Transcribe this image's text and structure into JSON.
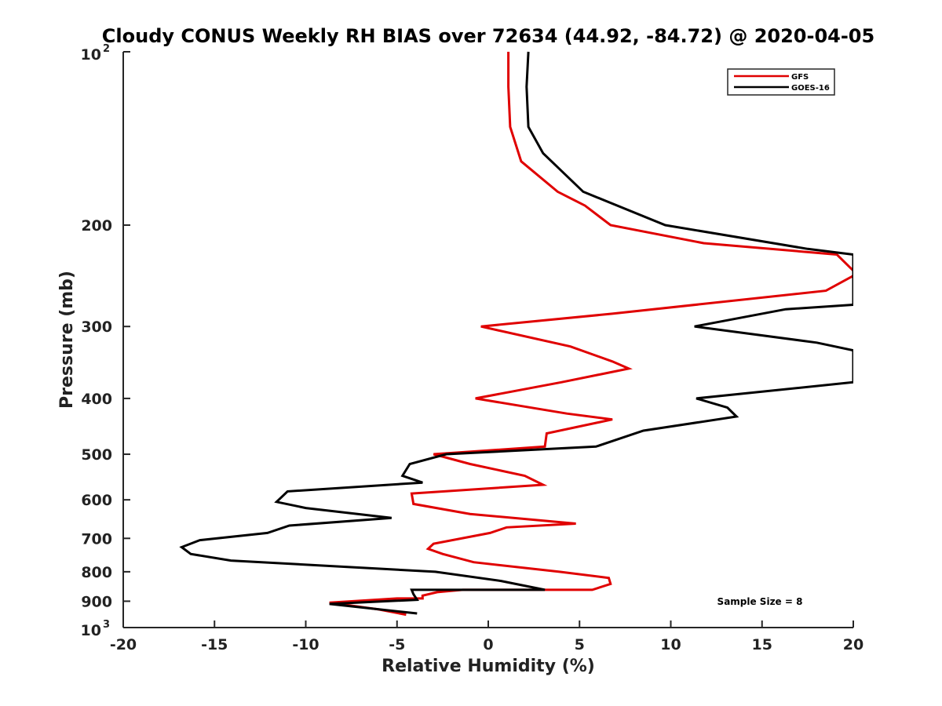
{
  "chart_data": {
    "type": "line",
    "title": "Cloudy CONUS Weekly RH BIAS over 72634 (44.92, -84.72) @ 2020-04-05",
    "xlabel": "Relative Humidity (%)",
    "ylabel": "Pressure (mb)",
    "xlim": [
      -20,
      20
    ],
    "ylim": [
      100,
      1000
    ],
    "y_scale": "log",
    "y_reversed": true,
    "x_ticks": [
      -20,
      -15,
      -10,
      -5,
      0,
      5,
      10,
      15,
      20
    ],
    "x_tick_labels": [
      "-20",
      "-15",
      "-10",
      "-5",
      "0",
      "5",
      "10",
      "15",
      "20"
    ],
    "y_ticks": [
      200,
      300,
      400,
      500,
      600,
      700,
      800,
      900
    ],
    "y_tick_labels": [
      "200",
      "300",
      "400",
      "500",
      "600",
      "700",
      "800",
      "900"
    ],
    "y_end_labels": {
      "top_base": "10",
      "top_exp": "2",
      "bottom_base": "10",
      "bottom_exp": "3"
    },
    "grid": false,
    "legend_position": "top-right",
    "annotation": "Sample Size = 8",
    "series": [
      {
        "name": "GFS",
        "color": "#e00000",
        "x": [
          1.1,
          1.1,
          1.2,
          1.8,
          3.8,
          5.3,
          6.7,
          11.8,
          19.1,
          20.0,
          20.0,
          18.5,
          6.8,
          -0.4,
          4.5,
          6.8,
          7.7,
          4.0,
          -0.7,
          4.3,
          6.8,
          3.2,
          3.1,
          -3.0,
          -1.0,
          2.0,
          3.0,
          -4.2,
          -4.1,
          -1.0,
          4.8,
          1.0,
          0.1,
          -3.0,
          -3.3,
          -2.5,
          -0.8,
          3.9,
          6.6,
          6.7,
          5.7,
          -1.4,
          -2.8,
          -3.6,
          -3.6,
          -5.0,
          -8.7,
          -6.0,
          -4.5
        ],
        "y": [
          100,
          115,
          135,
          155,
          175,
          185,
          200,
          215,
          225,
          240,
          245,
          260,
          285,
          300,
          325,
          345,
          355,
          375,
          400,
          425,
          435,
          460,
          485,
          500,
          520,
          545,
          565,
          585,
          610,
          635,
          660,
          670,
          685,
          715,
          730,
          745,
          770,
          800,
          820,
          840,
          860,
          860,
          868,
          880,
          890,
          890,
          905,
          930,
          950
        ]
      },
      {
        "name": "GOES-16",
        "color": "#000000",
        "x": [
          2.2,
          2.1,
          2.2,
          3.0,
          5.2,
          9.7,
          17.5,
          20.0,
          20.0,
          16.3,
          11.3,
          18.0,
          20.0,
          20.0,
          11.4,
          13.1,
          13.6,
          8.5,
          5.9,
          -2.3,
          -4.3,
          -4.7,
          -3.6,
          -11.0,
          -11.6,
          -10.0,
          -5.3,
          -10.9,
          -12.1,
          -15.8,
          -16.8,
          -16.3,
          -14.1,
          -2.9,
          0.7,
          3.1,
          -4.2,
          -4.1,
          -3.9,
          -8.7,
          -3.9
        ],
        "y": [
          100,
          115,
          135,
          150,
          175,
          200,
          220,
          225,
          275,
          280,
          300,
          320,
          330,
          375,
          400,
          415,
          430,
          455,
          485,
          500,
          520,
          545,
          560,
          580,
          605,
          620,
          645,
          665,
          685,
          705,
          725,
          745,
          765,
          800,
          830,
          860,
          860,
          875,
          895,
          910,
          945
        ]
      }
    ]
  }
}
